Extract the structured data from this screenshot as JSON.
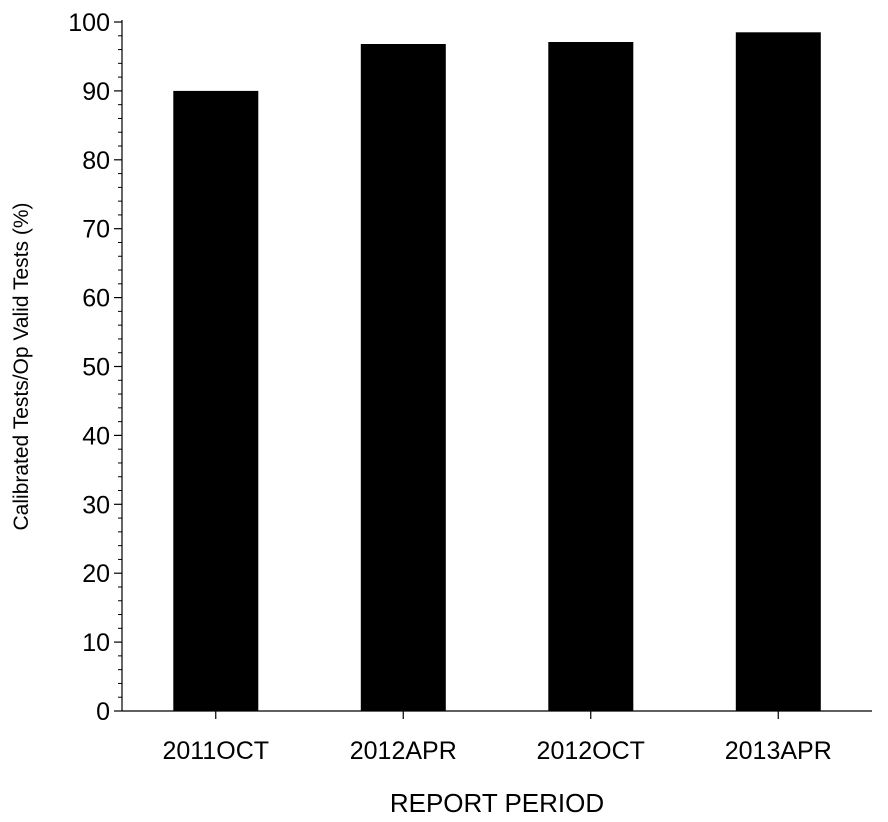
{
  "chart_data": {
    "type": "bar",
    "title": "",
    "xlabel": "REPORT PERIOD",
    "ylabel": "Calibrated Tests/Op Valid Tests (%)",
    "categories": [
      "2011OCT",
      "2012APR",
      "2012OCT",
      "2013APR"
    ],
    "values": [
      90,
      96.8,
      97.1,
      98.5
    ],
    "ylim": [
      0,
      100
    ],
    "yticks": [
      "0",
      "10",
      "20",
      "30",
      "40",
      "50",
      "60",
      "70",
      "80",
      "90",
      "100"
    ],
    "minor_ticks_per_interval": 5,
    "grid": false,
    "legend": "none",
    "colors": {
      "bar": "#000000",
      "axis": "#000000",
      "background": "#ffffff"
    }
  }
}
